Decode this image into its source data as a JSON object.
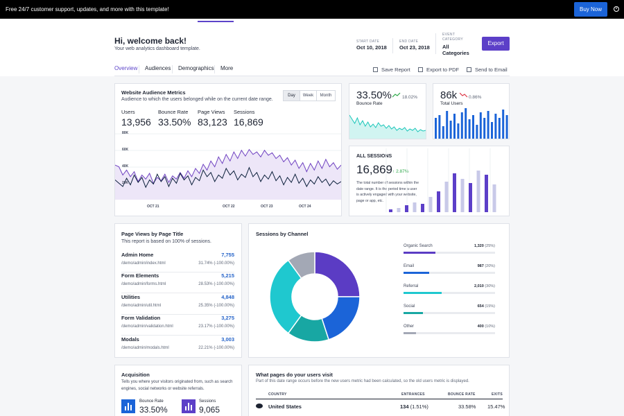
{
  "promo": {
    "text": "Free 24/7 customer support, updates, and more with this template!",
    "buy_label": "Buy Now"
  },
  "header": {
    "welcome": "Hi, welcome back!",
    "subtitle": "Your web analytics dashboard template.",
    "start_date_label": "START DATE",
    "start_date": "Oct 10, 2018",
    "end_date_label": "END DATE",
    "end_date": "Oct 23, 2018",
    "event_category_label": "EVENT CATEGORY",
    "event_category": "All Categories",
    "export_label": "Export"
  },
  "tabs": [
    "Overview",
    "Audiences",
    "Demographics",
    "More"
  ],
  "actions": {
    "save": "Save Report",
    "pdf": "Export to PDF",
    "email": "Send to Email"
  },
  "audience": {
    "title": "Website Audience Metrics",
    "subtitle": "Audience to which the users belonged while on the current date range.",
    "ranges": [
      "Day",
      "Week",
      "Month"
    ],
    "selected_range": "Day",
    "metrics": [
      {
        "label": "Users",
        "value": "13,956"
      },
      {
        "label": "Bounce Rate",
        "value": "33.50%"
      },
      {
        "label": "Page Views",
        "value": "83,123"
      },
      {
        "label": "Sessions",
        "value": "16,869"
      }
    ]
  },
  "chart_data": {
    "type": "area",
    "y_ticks": [
      "80K",
      "60K",
      "40K",
      "20K"
    ],
    "x_ticks": [
      "OCT 21",
      "OCT 22",
      "OCT 23",
      "OCT 24"
    ],
    "ylim": [
      0,
      80000
    ],
    "series": [
      {
        "values": [
          42000,
          40000,
          30000,
          36000,
          28000,
          34000,
          22000,
          30000,
          25000,
          32000,
          20000,
          27000,
          23000,
          31000,
          21000,
          29000,
          25000,
          33000,
          26000,
          35000,
          28000,
          38000,
          32000,
          43000,
          36000,
          47000,
          40000,
          52000,
          44000,
          55000,
          47000,
          58000,
          50000,
          60000,
          53000,
          61000,
          55000,
          58000,
          52000,
          60000,
          54000,
          57000,
          50000,
          54000,
          46000,
          51000,
          42000,
          48000,
          38000,
          45000,
          34000,
          44000,
          36000,
          47000,
          38000,
          49000,
          40000,
          45000,
          37000,
          42000
        ],
        "color": "#6f42c1"
      },
      {
        "values": [
          24000,
          20000,
          16000,
          26000,
          18000,
          30000,
          21000,
          27000,
          15000,
          24000,
          19000,
          31000,
          22000,
          28000,
          16000,
          26000,
          20000,
          32000,
          24000,
          29000,
          18000,
          27000,
          23000,
          36000,
          28000,
          33000,
          22000,
          30000,
          26000,
          38000,
          30000,
          35000,
          24000,
          31000,
          27000,
          39000,
          28000,
          33000,
          22000,
          30000,
          25000,
          34000,
          23000,
          29000,
          18000,
          27000,
          21000,
          31000,
          20000,
          26000,
          16000,
          24000,
          19000,
          28000,
          21000,
          25000,
          17000,
          23000,
          19000,
          22000
        ],
        "color": "#0b1f3a"
      }
    ]
  },
  "bounce_card": {
    "value": "33.50%",
    "delta": "18.02%",
    "label": "Bounce Rate",
    "trend": "up",
    "color": "#19c6b9"
  },
  "total_users_card": {
    "value": "86k",
    "delta": "0.86%",
    "label": "Total Users",
    "trend": "down",
    "color": "#1b64d8"
  },
  "sessions_card": {
    "title": "ALL SESSIONS",
    "value": "16,869",
    "delta": "2.87%",
    "description": "The total number of sessions within the date range. It is the period time a user is actively engaged with your website, page or app, etc."
  },
  "page_views": {
    "title": "Page Views by Page Title",
    "subtitle": "This report is based on 100% of sessions.",
    "rows": [
      {
        "title": "Admin Home",
        "path": "/demo/admin/index.html",
        "value": "7,755",
        "pct": "31.74% (-100.00%)"
      },
      {
        "title": "Form Elements",
        "path": "/demo/admin/forms.html",
        "value": "5,215",
        "pct": "28.53% (-100.00%)"
      },
      {
        "title": "Utilities",
        "path": "/demo/admin/util.html",
        "value": "4,848",
        "pct": "25.35% (-100.00%)"
      },
      {
        "title": "Form Validation",
        "path": "/demo/admin/validation.html",
        "value": "3,275",
        "pct": "23.17% (-100.00%)"
      },
      {
        "title": "Modals",
        "path": "/demo/admin/modals.html",
        "value": "3,003",
        "pct": "22.21% (-100.00%)"
      }
    ]
  },
  "channels": {
    "title": "Sessions by Channel",
    "rows": [
      {
        "name": "Organic Search",
        "value": "1,320",
        "pct": "(25%)",
        "fill": 0.25,
        "color": "#5b3cc4"
      },
      {
        "name": "Email",
        "value": "987",
        "pct": "(20%)",
        "fill": 0.2,
        "color": "#1b64d8"
      },
      {
        "name": "Referral",
        "value": "2,010",
        "pct": "(30%)",
        "fill": 0.3,
        "color": "#1fc8cf"
      },
      {
        "name": "Social",
        "value": "654",
        "pct": "(15%)",
        "fill": 0.15,
        "color": "#18a7a3"
      },
      {
        "name": "Other",
        "value": "400",
        "pct": "(10%)",
        "fill": 0.1,
        "color": "#a3a8b5"
      }
    ]
  },
  "acquisition": {
    "title": "Acquisition",
    "subtitle": "Tells you where your visitors originated from, such as search engines, social networks or website referrals.",
    "bounce_label": "Bounce Rate",
    "bounce_value": "33.50%",
    "sessions_label": "Sessions",
    "sessions_value": "9,065"
  },
  "pages_visit": {
    "title": "What pages do your users visit",
    "subtitle": "Part of this date range occurs before the new users metric had been calculated, so the old users metric is displayed.",
    "headers": [
      "COUNTRY",
      "ENTRANCES",
      "BOUNCE RATE",
      "EXITS"
    ],
    "row": {
      "country": "United States",
      "entrances": "134",
      "entrances_pct": "(1.51%)",
      "bounce": "33.58%",
      "exits": "15.47%"
    }
  }
}
